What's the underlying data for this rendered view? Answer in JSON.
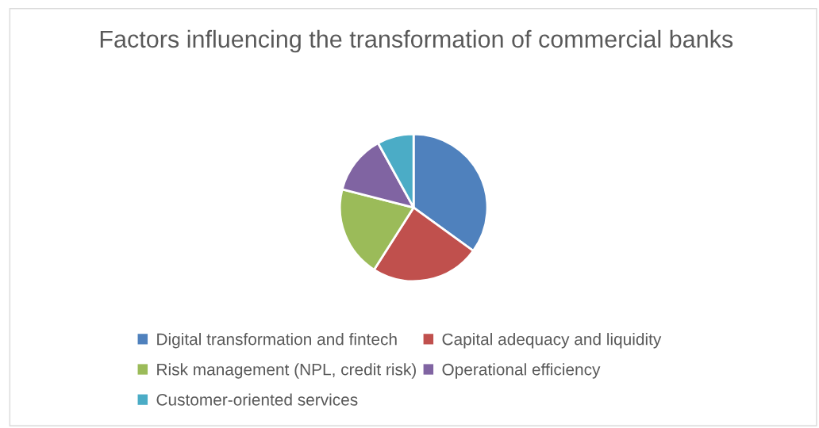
{
  "chart_data": {
    "type": "pie",
    "title": "Factors influencing the transformation of commercial banks",
    "categories": [
      "Digital transformation and fintech",
      "Capital adequacy and liquidity",
      "Risk management (NPL, credit risk)",
      "Operational efficiency",
      "Customer-oriented services"
    ],
    "values": [
      35,
      24,
      20,
      13,
      8
    ],
    "colors": [
      "#4f81bd",
      "#c0504d",
      "#9bbb59",
      "#8064a2",
      "#4bacc6"
    ],
    "legend": "bottom"
  }
}
